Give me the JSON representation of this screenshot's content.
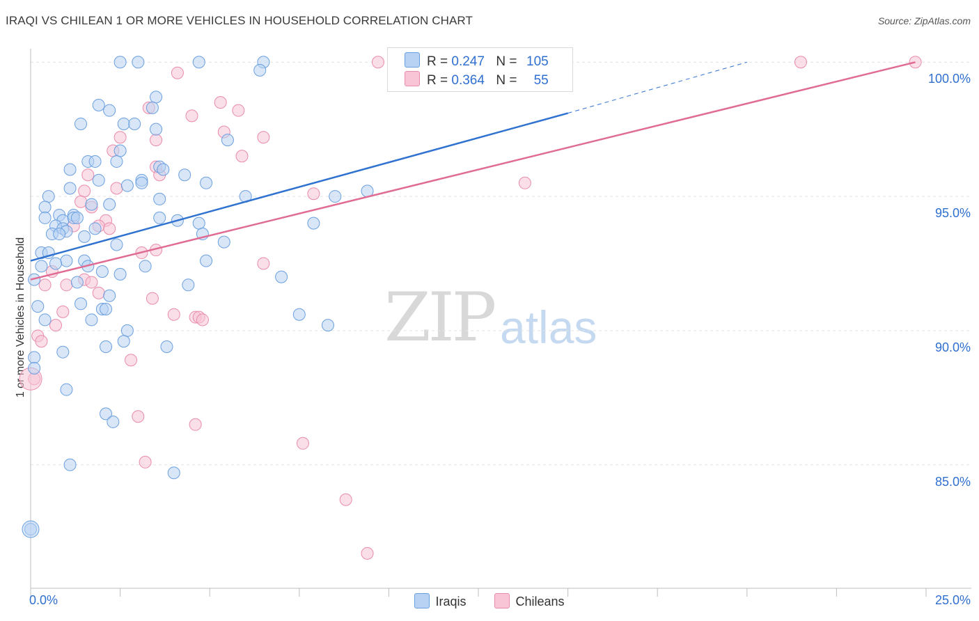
{
  "header": {
    "title": "IRAQI VS CHILEAN 1 OR MORE VEHICLES IN HOUSEHOLD CORRELATION CHART",
    "source": "Source: ZipAtlas.com"
  },
  "watermark": {
    "zip": "ZIP",
    "atlas": "atlas"
  },
  "legend": {
    "iraqis": {
      "r_label": "R = ",
      "r": "0.247",
      "n_label": "N = ",
      "n": "105"
    },
    "chileans": {
      "r_label": "R = ",
      "r": "0.364",
      "n_label": "N = ",
      "n": "55"
    }
  },
  "colors": {
    "iraqis_fill": "#b8d2f3",
    "iraqis_stroke": "#6a9fdf",
    "iraqis_line": "#2f72cf",
    "chileans_fill": "#f7c5d5",
    "chileans_stroke": "#e98bab",
    "chileans_line": "#e06b93"
  },
  "chart_data": {
    "type": "scatter",
    "title": "IRAQI VS CHILEAN 1 OR MORE VEHICLES IN HOUSEHOLD CORRELATION CHART",
    "xlabel": "",
    "ylabel": "1 or more Vehicles in Household",
    "xlim": [
      0,
      25
    ],
    "ylim": [
      80.4,
      100.5
    ],
    "x_tick_labels": [
      "0.0%",
      "25.0%"
    ],
    "y_ticks": [
      85,
      90,
      95,
      100
    ],
    "y_tick_labels": [
      "85.0%",
      "90.0%",
      "95.0%",
      "100.0%"
    ],
    "grid": true,
    "legend_position": "top-center",
    "series": [
      {
        "name": "Iraqis",
        "r": 0.247,
        "n": 105,
        "trend": {
          "x": [
            0,
            15
          ],
          "y": [
            92.6,
            98.1
          ],
          "dashed_to": [
            20,
            100
          ]
        },
        "points": [
          [
            2.5,
            100
          ],
          [
            3.0,
            100
          ],
          [
            4.7,
            100
          ],
          [
            6.5,
            100
          ],
          [
            6.4,
            99.7
          ],
          [
            3.5,
            98.7
          ],
          [
            1.9,
            98.4
          ],
          [
            3.4,
            98.3
          ],
          [
            2.2,
            98.2
          ],
          [
            1.4,
            97.7
          ],
          [
            2.6,
            97.7
          ],
          [
            2.9,
            97.7
          ],
          [
            3.5,
            97.5
          ],
          [
            5.5,
            97.1
          ],
          [
            2.5,
            96.7
          ],
          [
            1.6,
            96.3
          ],
          [
            1.8,
            96.3
          ],
          [
            2.4,
            96.3
          ],
          [
            3.6,
            96.1
          ],
          [
            1.1,
            96.0
          ],
          [
            3.7,
            96.0
          ],
          [
            4.3,
            95.8
          ],
          [
            1.9,
            95.6
          ],
          [
            3.1,
            95.6
          ],
          [
            3.1,
            95.5
          ],
          [
            4.9,
            95.5
          ],
          [
            2.7,
            95.4
          ],
          [
            1.1,
            95.3
          ],
          [
            9.4,
            95.2
          ],
          [
            8.5,
            95.0
          ],
          [
            0.5,
            95.0
          ],
          [
            6.0,
            95.0
          ],
          [
            3.6,
            94.9
          ],
          [
            1.7,
            94.7
          ],
          [
            2.2,
            94.7
          ],
          [
            0.4,
            94.6
          ],
          [
            0.8,
            94.3
          ],
          [
            1.2,
            94.3
          ],
          [
            0.4,
            94.2
          ],
          [
            0.9,
            94.1
          ],
          [
            1.2,
            94.2
          ],
          [
            1.3,
            94.2
          ],
          [
            3.6,
            94.2
          ],
          [
            4.1,
            94.1
          ],
          [
            4.7,
            94.0
          ],
          [
            7.9,
            94.0
          ],
          [
            0.7,
            93.9
          ],
          [
            0.9,
            93.8
          ],
          [
            1.0,
            93.7
          ],
          [
            1.8,
            93.8
          ],
          [
            4.8,
            93.6
          ],
          [
            0.6,
            93.6
          ],
          [
            0.8,
            93.6
          ],
          [
            1.5,
            93.5
          ],
          [
            5.4,
            93.3
          ],
          [
            2.4,
            93.2
          ],
          [
            0.3,
            92.9
          ],
          [
            0.5,
            92.9
          ],
          [
            1.0,
            92.6
          ],
          [
            1.5,
            92.6
          ],
          [
            0.7,
            92.5
          ],
          [
            4.9,
            92.6
          ],
          [
            0.3,
            92.4
          ],
          [
            3.2,
            92.4
          ],
          [
            1.6,
            92.4
          ],
          [
            2.0,
            92.2
          ],
          [
            2.5,
            92.1
          ],
          [
            7.0,
            92.0
          ],
          [
            0.1,
            91.9
          ],
          [
            1.3,
            91.8
          ],
          [
            4.4,
            91.7
          ],
          [
            2.2,
            91.3
          ],
          [
            1.4,
            91.0
          ],
          [
            0.2,
            90.9
          ],
          [
            2.0,
            90.8
          ],
          [
            2.1,
            90.8
          ],
          [
            7.5,
            90.6
          ],
          [
            0.4,
            90.4
          ],
          [
            1.7,
            90.4
          ],
          [
            8.3,
            90.2
          ],
          [
            2.7,
            90.0
          ],
          [
            2.6,
            89.6
          ],
          [
            2.1,
            89.4
          ],
          [
            3.8,
            89.4
          ],
          [
            0.9,
            89.2
          ],
          [
            0.1,
            89.0
          ],
          [
            0.1,
            88.6
          ],
          [
            1.0,
            87.8
          ],
          [
            2.1,
            86.9
          ],
          [
            2.3,
            86.6
          ],
          [
            1.1,
            85.0
          ],
          [
            4.0,
            84.7
          ],
          [
            0.0,
            82.6
          ]
        ]
      },
      {
        "name": "Chileans",
        "r": 0.364,
        "n": 55,
        "trend": {
          "x": [
            0,
            24.7
          ],
          "y": [
            91.9,
            100
          ]
        },
        "points": [
          [
            9.7,
            100
          ],
          [
            13.5,
            100
          ],
          [
            21.5,
            100
          ],
          [
            24.7,
            100
          ],
          [
            4.1,
            99.6
          ],
          [
            5.3,
            98.5
          ],
          [
            3.3,
            98.3
          ],
          [
            5.8,
            98.2
          ],
          [
            4.5,
            98.0
          ],
          [
            5.4,
            97.4
          ],
          [
            6.5,
            97.2
          ],
          [
            2.5,
            97.2
          ],
          [
            3.5,
            97.1
          ],
          [
            2.3,
            96.7
          ],
          [
            5.9,
            96.5
          ],
          [
            3.5,
            96.1
          ],
          [
            3.6,
            95.8
          ],
          [
            1.6,
            95.8
          ],
          [
            13.8,
            95.5
          ],
          [
            2.4,
            95.3
          ],
          [
            1.5,
            95.2
          ],
          [
            7.9,
            95.1
          ],
          [
            1.4,
            94.8
          ],
          [
            1.7,
            94.6
          ],
          [
            2.1,
            94.1
          ],
          [
            1.9,
            93.9
          ],
          [
            2.2,
            93.8
          ],
          [
            1.2,
            93.9
          ],
          [
            3.5,
            93.0
          ],
          [
            3.1,
            92.9
          ],
          [
            6.5,
            92.5
          ],
          [
            0.6,
            92.2
          ],
          [
            1.5,
            91.9
          ],
          [
            1.7,
            91.8
          ],
          [
            1.0,
            91.7
          ],
          [
            0.4,
            91.7
          ],
          [
            1.9,
            91.4
          ],
          [
            3.4,
            91.2
          ],
          [
            0.9,
            90.7
          ],
          [
            4.0,
            90.6
          ],
          [
            4.6,
            90.5
          ],
          [
            4.7,
            90.5
          ],
          [
            4.8,
            90.4
          ],
          [
            0.7,
            90.2
          ],
          [
            0.2,
            89.8
          ],
          [
            0.3,
            89.6
          ],
          [
            2.8,
            88.9
          ],
          [
            0.1,
            88.2
          ],
          [
            3.0,
            86.8
          ],
          [
            4.6,
            86.5
          ],
          [
            7.6,
            85.8
          ],
          [
            3.2,
            85.1
          ],
          [
            8.8,
            83.7
          ],
          [
            9.4,
            81.7
          ]
        ]
      }
    ]
  },
  "bottom_legend": {
    "iraqis": "Iraqis",
    "chileans": "Chileans"
  }
}
